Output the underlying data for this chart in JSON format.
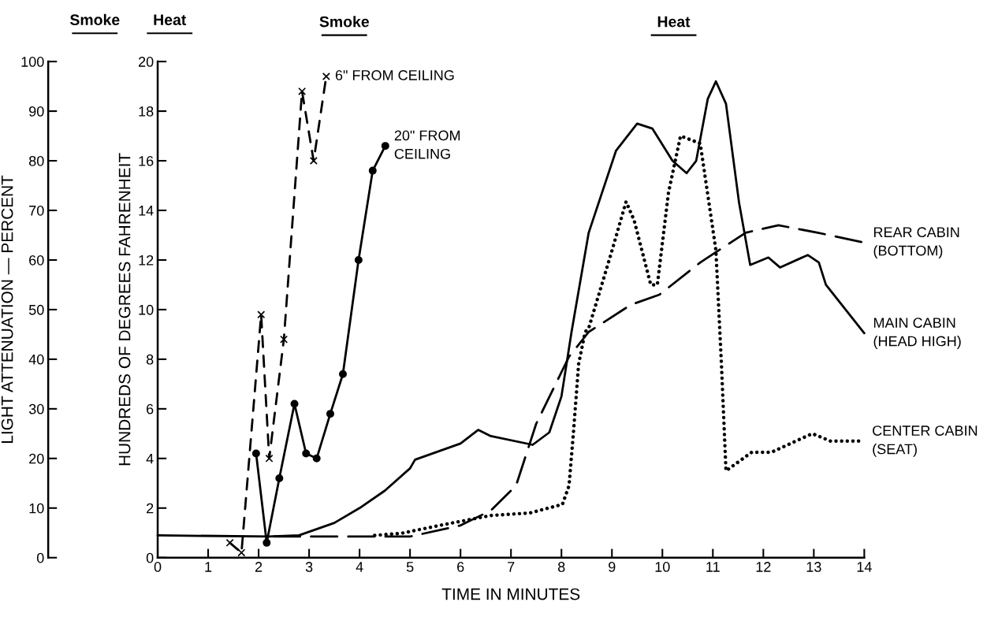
{
  "chart_data": {
    "type": "line",
    "xlabel": "TIME IN MINUTES",
    "ylabel": "HUNDREDS OF DEGREES FAHRENHEIT",
    "y2label": "LIGHT ATTENUATION — PERCENT",
    "annotations": [
      "Smoke",
      "Heat",
      "Smoke",
      "Heat"
    ],
    "xlim": [
      0,
      14
    ],
    "xticks": [
      0,
      1,
      2,
      3,
      4,
      5,
      6,
      7,
      8,
      9,
      10,
      11,
      12,
      13,
      14
    ],
    "ylim": [
      0,
      20
    ],
    "yticks": [
      0,
      2,
      4,
      6,
      8,
      10,
      12,
      14,
      16,
      18,
      20
    ],
    "y2lim": [
      0,
      100
    ],
    "y2ticks": [
      0,
      10,
      20,
      30,
      40,
      50,
      60,
      70,
      80,
      90,
      100
    ],
    "grid": false,
    "legend": false,
    "series": [
      {
        "name": "6\" FROM CEILING",
        "axis": "y2",
        "color": "#000000",
        "marker": "cross",
        "line_style": "dashed",
        "x": [
          1.43,
          1.66,
          2.05,
          2.21,
          2.5,
          2.86,
          3.09,
          3.34
        ],
        "values": [
          3,
          1,
          49,
          20,
          44,
          94,
          80,
          97
        ]
      },
      {
        "name": "20\" FROM\nCEILING",
        "axis": "y2",
        "color": "#000000",
        "marker": "circle",
        "line_style": "solid",
        "x": [
          1.95,
          2.16,
          2.41,
          2.71,
          2.94,
          3.15,
          3.42,
          3.67,
          3.98,
          4.26,
          4.51
        ],
        "values": [
          21,
          3,
          16,
          31,
          21,
          20,
          29,
          37,
          60,
          78,
          83
        ]
      },
      {
        "name": "REAR CABIN\n(BOTTOM)",
        "axis": "y",
        "color": "#000000",
        "marker": "none",
        "line_style": "longdash",
        "x": [
          2.3,
          4.5,
          5.0,
          6.0,
          6.6,
          7.1,
          7.5,
          8.15,
          8.54,
          9.38,
          9.94,
          10.75,
          11.65,
          12.3,
          13.08,
          14.0
        ],
        "values": [
          0.85,
          0.85,
          0.85,
          1.3,
          1.9,
          2.9,
          5.4,
          8.1,
          9.1,
          10.2,
          10.6,
          11.9,
          13.1,
          13.4,
          13.1,
          12.7
        ]
      },
      {
        "name": "MAIN CABIN\n(HEAD HIGH)",
        "axis": "y",
        "color": "#000000",
        "marker": "none",
        "line_style": "solid",
        "x": [
          0,
          2.2,
          2.8,
          3.5,
          4.0,
          4.5,
          5.0,
          5.1,
          6.0,
          6.35,
          6.6,
          7.43,
          7.76,
          8.0,
          8.2,
          8.54,
          9.08,
          9.5,
          9.8,
          10.2,
          10.48,
          10.67,
          10.9,
          11.06,
          11.26,
          11.52,
          11.74,
          12.1,
          12.33,
          12.88,
          13.1,
          13.24,
          14.0
        ],
        "values": [
          0.9,
          0.85,
          0.9,
          1.4,
          2.0,
          2.7,
          3.6,
          3.95,
          4.6,
          5.15,
          4.9,
          4.55,
          5.05,
          6.5,
          9.1,
          13.1,
          16.4,
          17.5,
          17.3,
          16.0,
          15.5,
          16.0,
          18.5,
          19.2,
          18.3,
          14.3,
          11.8,
          12.1,
          11.7,
          12.2,
          11.9,
          11.0,
          9.05
        ]
      },
      {
        "name": "CENTER CABIN\n(SEAT)",
        "axis": "y",
        "color": "#000000",
        "marker": "none",
        "line_style": "dotted",
        "x": [
          4.3,
          4.82,
          5.66,
          6.6,
          7.37,
          8.02,
          8.15,
          8.24,
          8.34,
          8.47,
          8.54,
          8.99,
          9.28,
          9.44,
          9.77,
          9.9,
          10.12,
          10.36,
          10.75,
          11.06,
          11.17,
          11.26,
          11.77,
          12.16,
          12.97,
          13.33,
          13.98
        ],
        "values": [
          0.9,
          0.98,
          1.33,
          1.7,
          1.8,
          2.15,
          2.9,
          5.1,
          7.8,
          9.1,
          9.25,
          12.3,
          14.35,
          13.6,
          11.0,
          11.0,
          14.7,
          17.0,
          16.7,
          12.4,
          7.8,
          3.5,
          4.25,
          4.25,
          5.0,
          4.7,
          4.7
        ]
      }
    ]
  }
}
